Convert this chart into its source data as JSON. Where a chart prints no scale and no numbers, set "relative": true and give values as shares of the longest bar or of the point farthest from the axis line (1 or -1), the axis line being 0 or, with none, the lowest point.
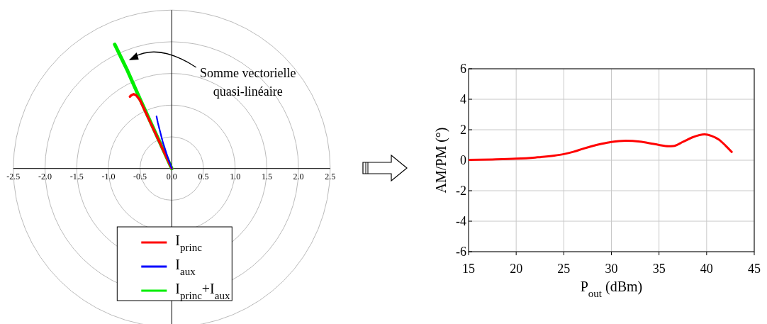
{
  "chart_data": [
    {
      "type": "line",
      "xlim": [
        -2.5,
        2.5
      ],
      "xticks": [
        {
          "value": -2.5,
          "label": "-2.5"
        },
        {
          "value": -2,
          "label": "-2.0"
        },
        {
          "value": -1.5,
          "label": "-1.5"
        },
        {
          "value": -1,
          "label": "-1.0"
        },
        {
          "value": -0.5,
          "label": "-0.5"
        },
        {
          "value": 0,
          "label": "0.0"
        },
        {
          "value": 0.5,
          "label": "0.5"
        },
        {
          "value": 1,
          "label": "1.0"
        },
        {
          "value": 1.5,
          "label": "1.5"
        },
        {
          "value": 2,
          "label": "2.0"
        },
        {
          "value": 2.5,
          "label": "2.5"
        }
      ],
      "relative": true,
      "grid": true,
      "legend": "bottom",
      "series": [
        {
          "name": "I$_{princ}$",
          "color": "#ff0000",
          "x": [
            0,
            -0.1,
            -0.2,
            -0.3,
            -0.4,
            -0.5,
            -0.56,
            -0.6,
            -0.64,
            -0.66
          ],
          "values": [
            0,
            0.11,
            0.22,
            0.33,
            0.44,
            0.55,
            0.59,
            0.6,
            0.59,
            0.58
          ]
        },
        {
          "name": "I$_{aux}$",
          "color": "#0000ff",
          "x": [
            0,
            -0.07,
            -0.14,
            -0.19,
            -0.22,
            -0.24
          ],
          "values": [
            0,
            0.1,
            0.21,
            0.31,
            0.37,
            0.42
          ]
        },
        {
          "name": "I$_{princ}$+I$_{aux}$",
          "color": "#00ee00",
          "x": [
            0,
            -0.25,
            -0.5,
            -0.7,
            -0.9
          ],
          "values": [
            0,
            0.28,
            0.56,
            0.79,
            1
          ]
        }
      ],
      "annotations": [
        "Somme vectorielle quasi-linéaire"
      ]
    },
    {
      "type": "line",
      "xlabel": "P$_{out}$ (dBm)",
      "ylabel": "AM/PM (°)",
      "xlim": [
        15,
        45
      ],
      "xticks": [
        15,
        20,
        25,
        30,
        35,
        40,
        45
      ],
      "ylim": [
        -6,
        6
      ],
      "yticks": [
        -6,
        -4,
        -2,
        0,
        2,
        4,
        6
      ],
      "grid": true,
      "series": [
        {
          "color": "#ff0000",
          "x": [
            15,
            17.5,
            20,
            22,
            24,
            25,
            26,
            27,
            28,
            29,
            30,
            31.5,
            33,
            34,
            35,
            36,
            36.5,
            37.5,
            38.5,
            39.8,
            40.5,
            41.3,
            42,
            42.7
          ],
          "values": [
            0.02,
            0.05,
            0.1,
            0.18,
            0.3,
            0.4,
            0.55,
            0.75,
            0.93,
            1.08,
            1.2,
            1.28,
            1.22,
            1.12,
            1.0,
            0.92,
            0.93,
            1.2,
            1.5,
            1.7,
            1.6,
            1.35,
            0.95,
            0.5
          ]
        }
      ]
    }
  ]
}
